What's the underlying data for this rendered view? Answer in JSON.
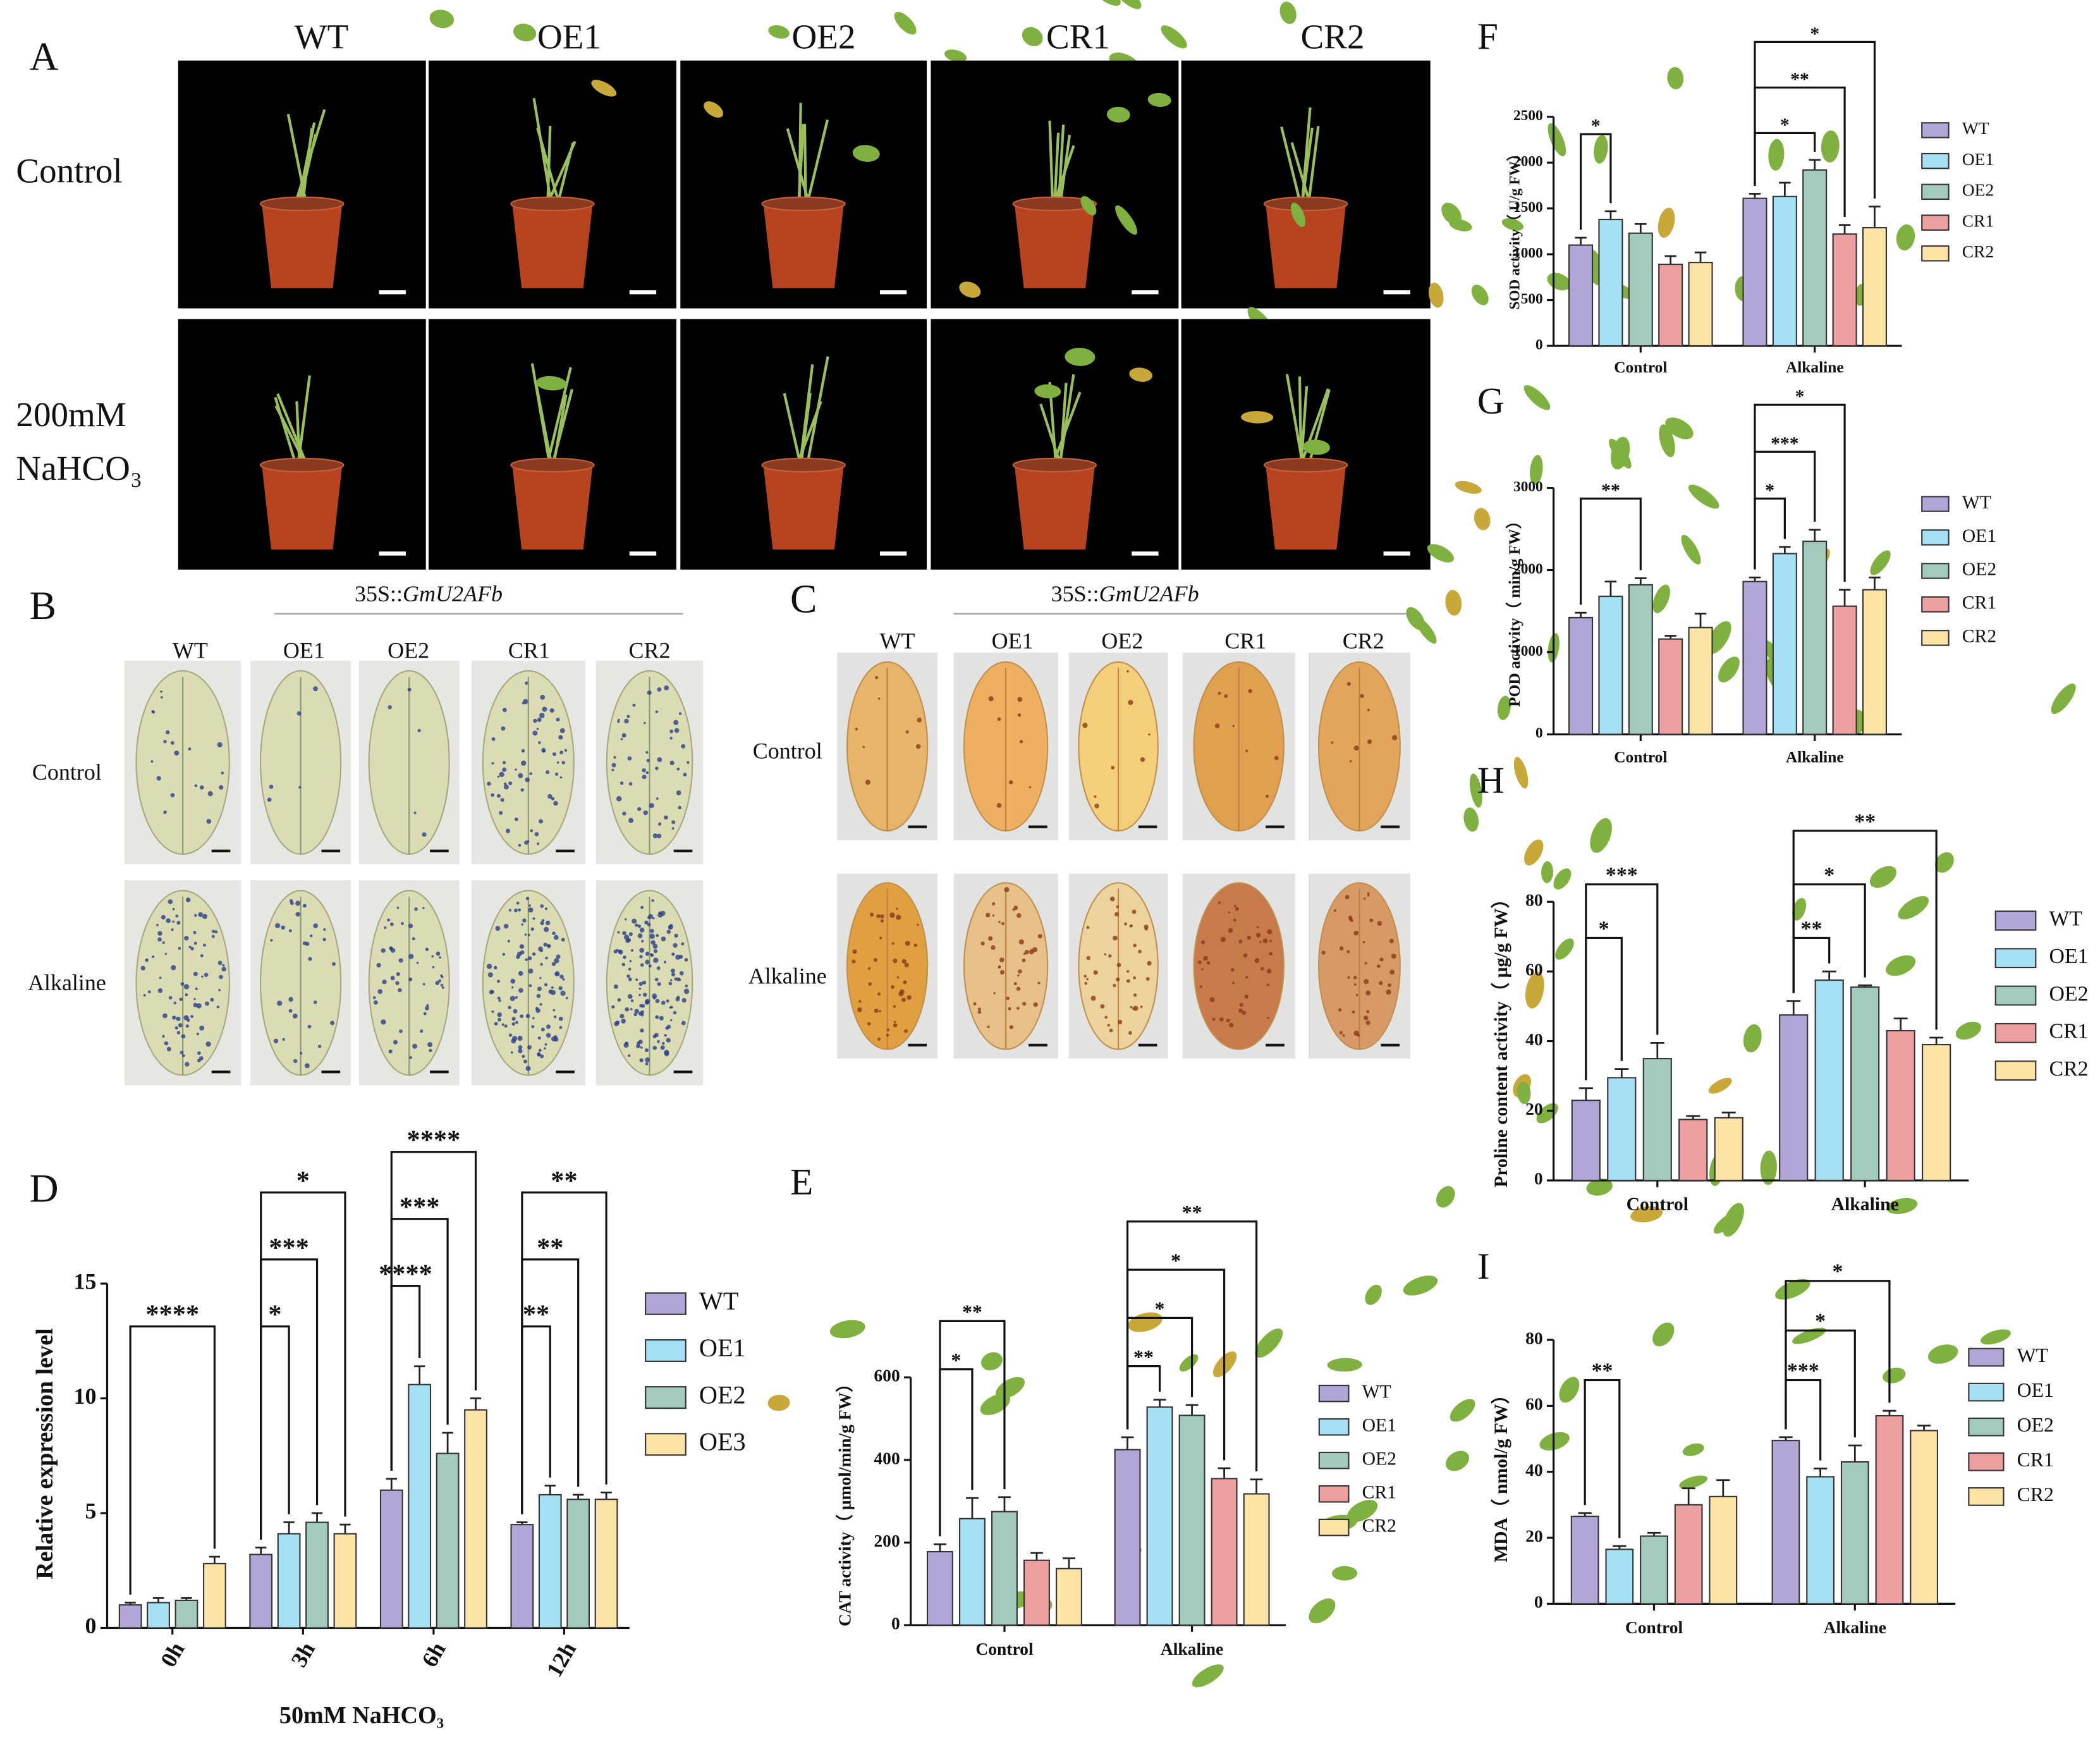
{
  "photo_panels": [
    {
      "panel": "A",
      "columns": [
        "WT",
        "OE1",
        "OE2",
        "CR1",
        "CR2"
      ],
      "rows": [
        [
          "Control"
        ],
        [
          "200mM",
          "NaHCO₃"
        ]
      ]
    },
    {
      "panel": "B",
      "header": [
        "35S::",
        "GmU2AFb"
      ],
      "columns": [
        "WT",
        "OE1",
        "OE2",
        "CR1",
        "CR2"
      ],
      "rows": [
        [
          "Control"
        ],
        [
          "Alkaline"
        ]
      ]
    },
    {
      "panel": "C",
      "header": [
        "35S::",
        "GmU2AFb"
      ],
      "columns": [
        "WT",
        "OE1",
        "OE2",
        "CR1",
        "CR2"
      ],
      "rows": [
        [
          "Control"
        ],
        [
          "Alkaline"
        ]
      ]
    }
  ],
  "chart_data": [
    {
      "type": "bar",
      "panel": "D",
      "ylabel": "Relative expression level",
      "xlabel": "50mM NaHCO₃",
      "categories": [
        "0h",
        "3h",
        "6h",
        "12h"
      ],
      "ylim": [
        0,
        15
      ],
      "yticks": [
        0,
        5,
        10,
        15
      ],
      "series": [
        {
          "name": "WT",
          "color": "#b2a6d8",
          "values": [
            1.0,
            3.2,
            6.0,
            4.5
          ],
          "errors": [
            0.1,
            0.3,
            0.5,
            0.1
          ]
        },
        {
          "name": "OE1",
          "color": "#a6e0f5",
          "values": [
            1.1,
            4.1,
            10.6,
            5.8
          ],
          "errors": [
            0.2,
            0.5,
            0.8,
            0.4
          ]
        },
        {
          "name": "OE2",
          "color": "#a3cbbb",
          "values": [
            1.2,
            4.6,
            7.6,
            5.6
          ],
          "errors": [
            0.1,
            0.4,
            0.9,
            0.2
          ]
        },
        {
          "name": "OE3",
          "color": "#fbe4a6",
          "values": [
            2.8,
            4.1,
            9.5,
            5.6
          ],
          "errors": [
            0.3,
            0.4,
            0.5,
            0.3
          ]
        }
      ],
      "brackets": [
        {
          "category": 0,
          "from": 0,
          "to": 3,
          "label": "****"
        },
        {
          "category": 1,
          "from": 0,
          "to": 1,
          "label": "*"
        },
        {
          "category": 1,
          "from": 0,
          "to": 2,
          "label": "***"
        },
        {
          "category": 1,
          "from": 0,
          "to": 3,
          "label": "*"
        },
        {
          "category": 2,
          "from": 0,
          "to": 1,
          "label": "****"
        },
        {
          "category": 2,
          "from": 0,
          "to": 2,
          "label": "***"
        },
        {
          "category": 2,
          "from": 0,
          "to": 3,
          "label": "****"
        },
        {
          "category": 3,
          "from": 0,
          "to": 1,
          "label": "**"
        },
        {
          "category": 3,
          "from": 0,
          "to": 2,
          "label": "**"
        },
        {
          "category": 3,
          "from": 0,
          "to": 3,
          "label": "**"
        }
      ]
    },
    {
      "type": "bar",
      "panel": "E",
      "ylabel": "CAT activity（ μmol/min/g FW）",
      "categories": [
        "Control",
        "Alkaline"
      ],
      "ylim": [
        0,
        600
      ],
      "yticks": [
        0,
        200,
        400,
        600
      ],
      "series": [
        {
          "name": "WT",
          "color": "#b2a6d8",
          "values": [
            178,
            425
          ],
          "errors": [
            18,
            30
          ]
        },
        {
          "name": "OE1",
          "color": "#a6e0f5",
          "values": [
            258,
            528
          ],
          "errors": [
            50,
            18
          ]
        },
        {
          "name": "OE2",
          "color": "#a3cbbb",
          "values": [
            275,
            508
          ],
          "errors": [
            35,
            25
          ]
        },
        {
          "name": "CR1",
          "color": "#ee9f9f",
          "values": [
            157,
            355
          ],
          "errors": [
            18,
            25
          ]
        },
        {
          "name": "CR2",
          "color": "#fbe4a6",
          "values": [
            137,
            318
          ],
          "errors": [
            25,
            35
          ]
        }
      ],
      "brackets": [
        {
          "category": 0,
          "from": 0,
          "to": 1,
          "label": "*"
        },
        {
          "category": 0,
          "from": 0,
          "to": 2,
          "label": "**"
        },
        {
          "category": 1,
          "from": 0,
          "to": 1,
          "label": "**"
        },
        {
          "category": 1,
          "from": 0,
          "to": 2,
          "label": "*"
        },
        {
          "category": 1,
          "from": 0,
          "to": 3,
          "label": "*"
        },
        {
          "category": 1,
          "from": 0,
          "to": 4,
          "label": "**"
        }
      ]
    },
    {
      "type": "bar",
      "panel": "F",
      "ylabel": "SOD activity（ U/g FW）",
      "categories": [
        "Control",
        "Alkaline"
      ],
      "ylim": [
        0,
        2500
      ],
      "yticks": [
        0,
        500,
        1000,
        1500,
        2000,
        2500
      ],
      "series": [
        {
          "name": "WT",
          "color": "#b2a6d8",
          "values": [
            1100,
            1610
          ],
          "errors": [
            80,
            50
          ]
        },
        {
          "name": "OE1",
          "color": "#a6e0f5",
          "values": [
            1380,
            1630
          ],
          "errors": [
            90,
            150
          ]
        },
        {
          "name": "OE2",
          "color": "#a3cbbb",
          "values": [
            1230,
            1920
          ],
          "errors": [
            100,
            110
          ]
        },
        {
          "name": "CR1",
          "color": "#ee9f9f",
          "values": [
            890,
            1220
          ],
          "errors": [
            90,
            100
          ]
        },
        {
          "name": "CR2",
          "color": "#fbe4a6",
          "values": [
            910,
            1290
          ],
          "errors": [
            110,
            230
          ]
        }
      ],
      "brackets": [
        {
          "category": 0,
          "from": 0,
          "to": 1,
          "label": "*"
        },
        {
          "category": 1,
          "from": 0,
          "to": 2,
          "label": "*"
        },
        {
          "category": 1,
          "from": 0,
          "to": 3,
          "label": "**"
        },
        {
          "category": 1,
          "from": 0,
          "to": 4,
          "label": "*"
        }
      ]
    },
    {
      "type": "bar",
      "panel": "G",
      "ylabel": "POD activity（ min/g FW）",
      "categories": [
        "Control",
        "Alkaline"
      ],
      "ylim": [
        0,
        3000
      ],
      "yticks": [
        0,
        1000,
        2000,
        3000
      ],
      "series": [
        {
          "name": "WT",
          "color": "#b2a6d8",
          "values": [
            1420,
            1860
          ],
          "errors": [
            60,
            50
          ]
        },
        {
          "name": "OE1",
          "color": "#a6e0f5",
          "values": [
            1680,
            2200
          ],
          "errors": [
            180,
            80
          ]
        },
        {
          "name": "OE2",
          "color": "#a3cbbb",
          "values": [
            1820,
            2350
          ],
          "errors": [
            80,
            140
          ]
        },
        {
          "name": "CR1",
          "color": "#ee9f9f",
          "values": [
            1160,
            1560
          ],
          "errors": [
            40,
            200
          ]
        },
        {
          "name": "CR2",
          "color": "#fbe4a6",
          "values": [
            1300,
            1760
          ],
          "errors": [
            170,
            150
          ]
        }
      ],
      "brackets": [
        {
          "category": 0,
          "from": 0,
          "to": 2,
          "label": "**"
        },
        {
          "category": 1,
          "from": 0,
          "to": 1,
          "label": "*"
        },
        {
          "category": 1,
          "from": 0,
          "to": 2,
          "label": "***"
        },
        {
          "category": 1,
          "from": 0,
          "to": 3,
          "label": "*"
        }
      ]
    },
    {
      "type": "bar",
      "panel": "H",
      "ylabel": "Proline content activity（ μg/g FW）",
      "categories": [
        "Control",
        "Alkaline"
      ],
      "ylim": [
        0,
        80
      ],
      "yticks": [
        0,
        20,
        40,
        60,
        80
      ],
      "series": [
        {
          "name": "WT",
          "color": "#b2a6d8",
          "values": [
            23,
            47.5
          ],
          "errors": [
            3.5,
            4
          ]
        },
        {
          "name": "OE1",
          "color": "#a6e0f5",
          "values": [
            29.5,
            57.5
          ],
          "errors": [
            2.5,
            2.5
          ]
        },
        {
          "name": "OE2",
          "color": "#a3cbbb",
          "values": [
            35,
            55.5
          ],
          "errors": [
            4.5,
            0.5
          ]
        },
        {
          "name": "CR1",
          "color": "#ee9f9f",
          "values": [
            17.5,
            43
          ],
          "errors": [
            1,
            3.5
          ]
        },
        {
          "name": "CR2",
          "color": "#fbe4a6",
          "values": [
            18,
            39
          ],
          "errors": [
            1.5,
            2
          ]
        }
      ],
      "brackets": [
        {
          "category": 0,
          "from": 0,
          "to": 1,
          "label": "*"
        },
        {
          "category": 0,
          "from": 0,
          "to": 2,
          "label": "***"
        },
        {
          "category": 1,
          "from": 0,
          "to": 1,
          "label": "**"
        },
        {
          "category": 1,
          "from": 0,
          "to": 2,
          "label": "*"
        },
        {
          "category": 1,
          "from": 0,
          "to": 4,
          "label": "**"
        }
      ]
    },
    {
      "type": "bar",
      "panel": "I",
      "ylabel": "MDA（ nmol/g FW）",
      "categories": [
        "Control",
        "Alkaline"
      ],
      "ylim": [
        0,
        80
      ],
      "yticks": [
        0,
        20,
        40,
        60,
        80
      ],
      "series": [
        {
          "name": "WT",
          "color": "#b2a6d8",
          "values": [
            26.5,
            49.5
          ],
          "errors": [
            1,
            1
          ]
        },
        {
          "name": "OE1",
          "color": "#a6e0f5",
          "values": [
            16.5,
            38.5
          ],
          "errors": [
            1,
            2.5
          ]
        },
        {
          "name": "OE2",
          "color": "#a3cbbb",
          "values": [
            20.5,
            43
          ],
          "errors": [
            1,
            5
          ]
        },
        {
          "name": "CR1",
          "color": "#ee9f9f",
          "values": [
            30,
            57
          ],
          "errors": [
            5,
            1.5
          ]
        },
        {
          "name": "CR2",
          "color": "#fbe4a6",
          "values": [
            32.5,
            52.5
          ],
          "errors": [
            5,
            1.5
          ]
        }
      ],
      "brackets": [
        {
          "category": 0,
          "from": 0,
          "to": 1,
          "label": "**"
        },
        {
          "category": 1,
          "from": 0,
          "to": 1,
          "label": "***"
        },
        {
          "category": 1,
          "from": 0,
          "to": 2,
          "label": "*"
        },
        {
          "category": 1,
          "from": 0,
          "to": 3,
          "label": "*"
        }
      ]
    }
  ]
}
